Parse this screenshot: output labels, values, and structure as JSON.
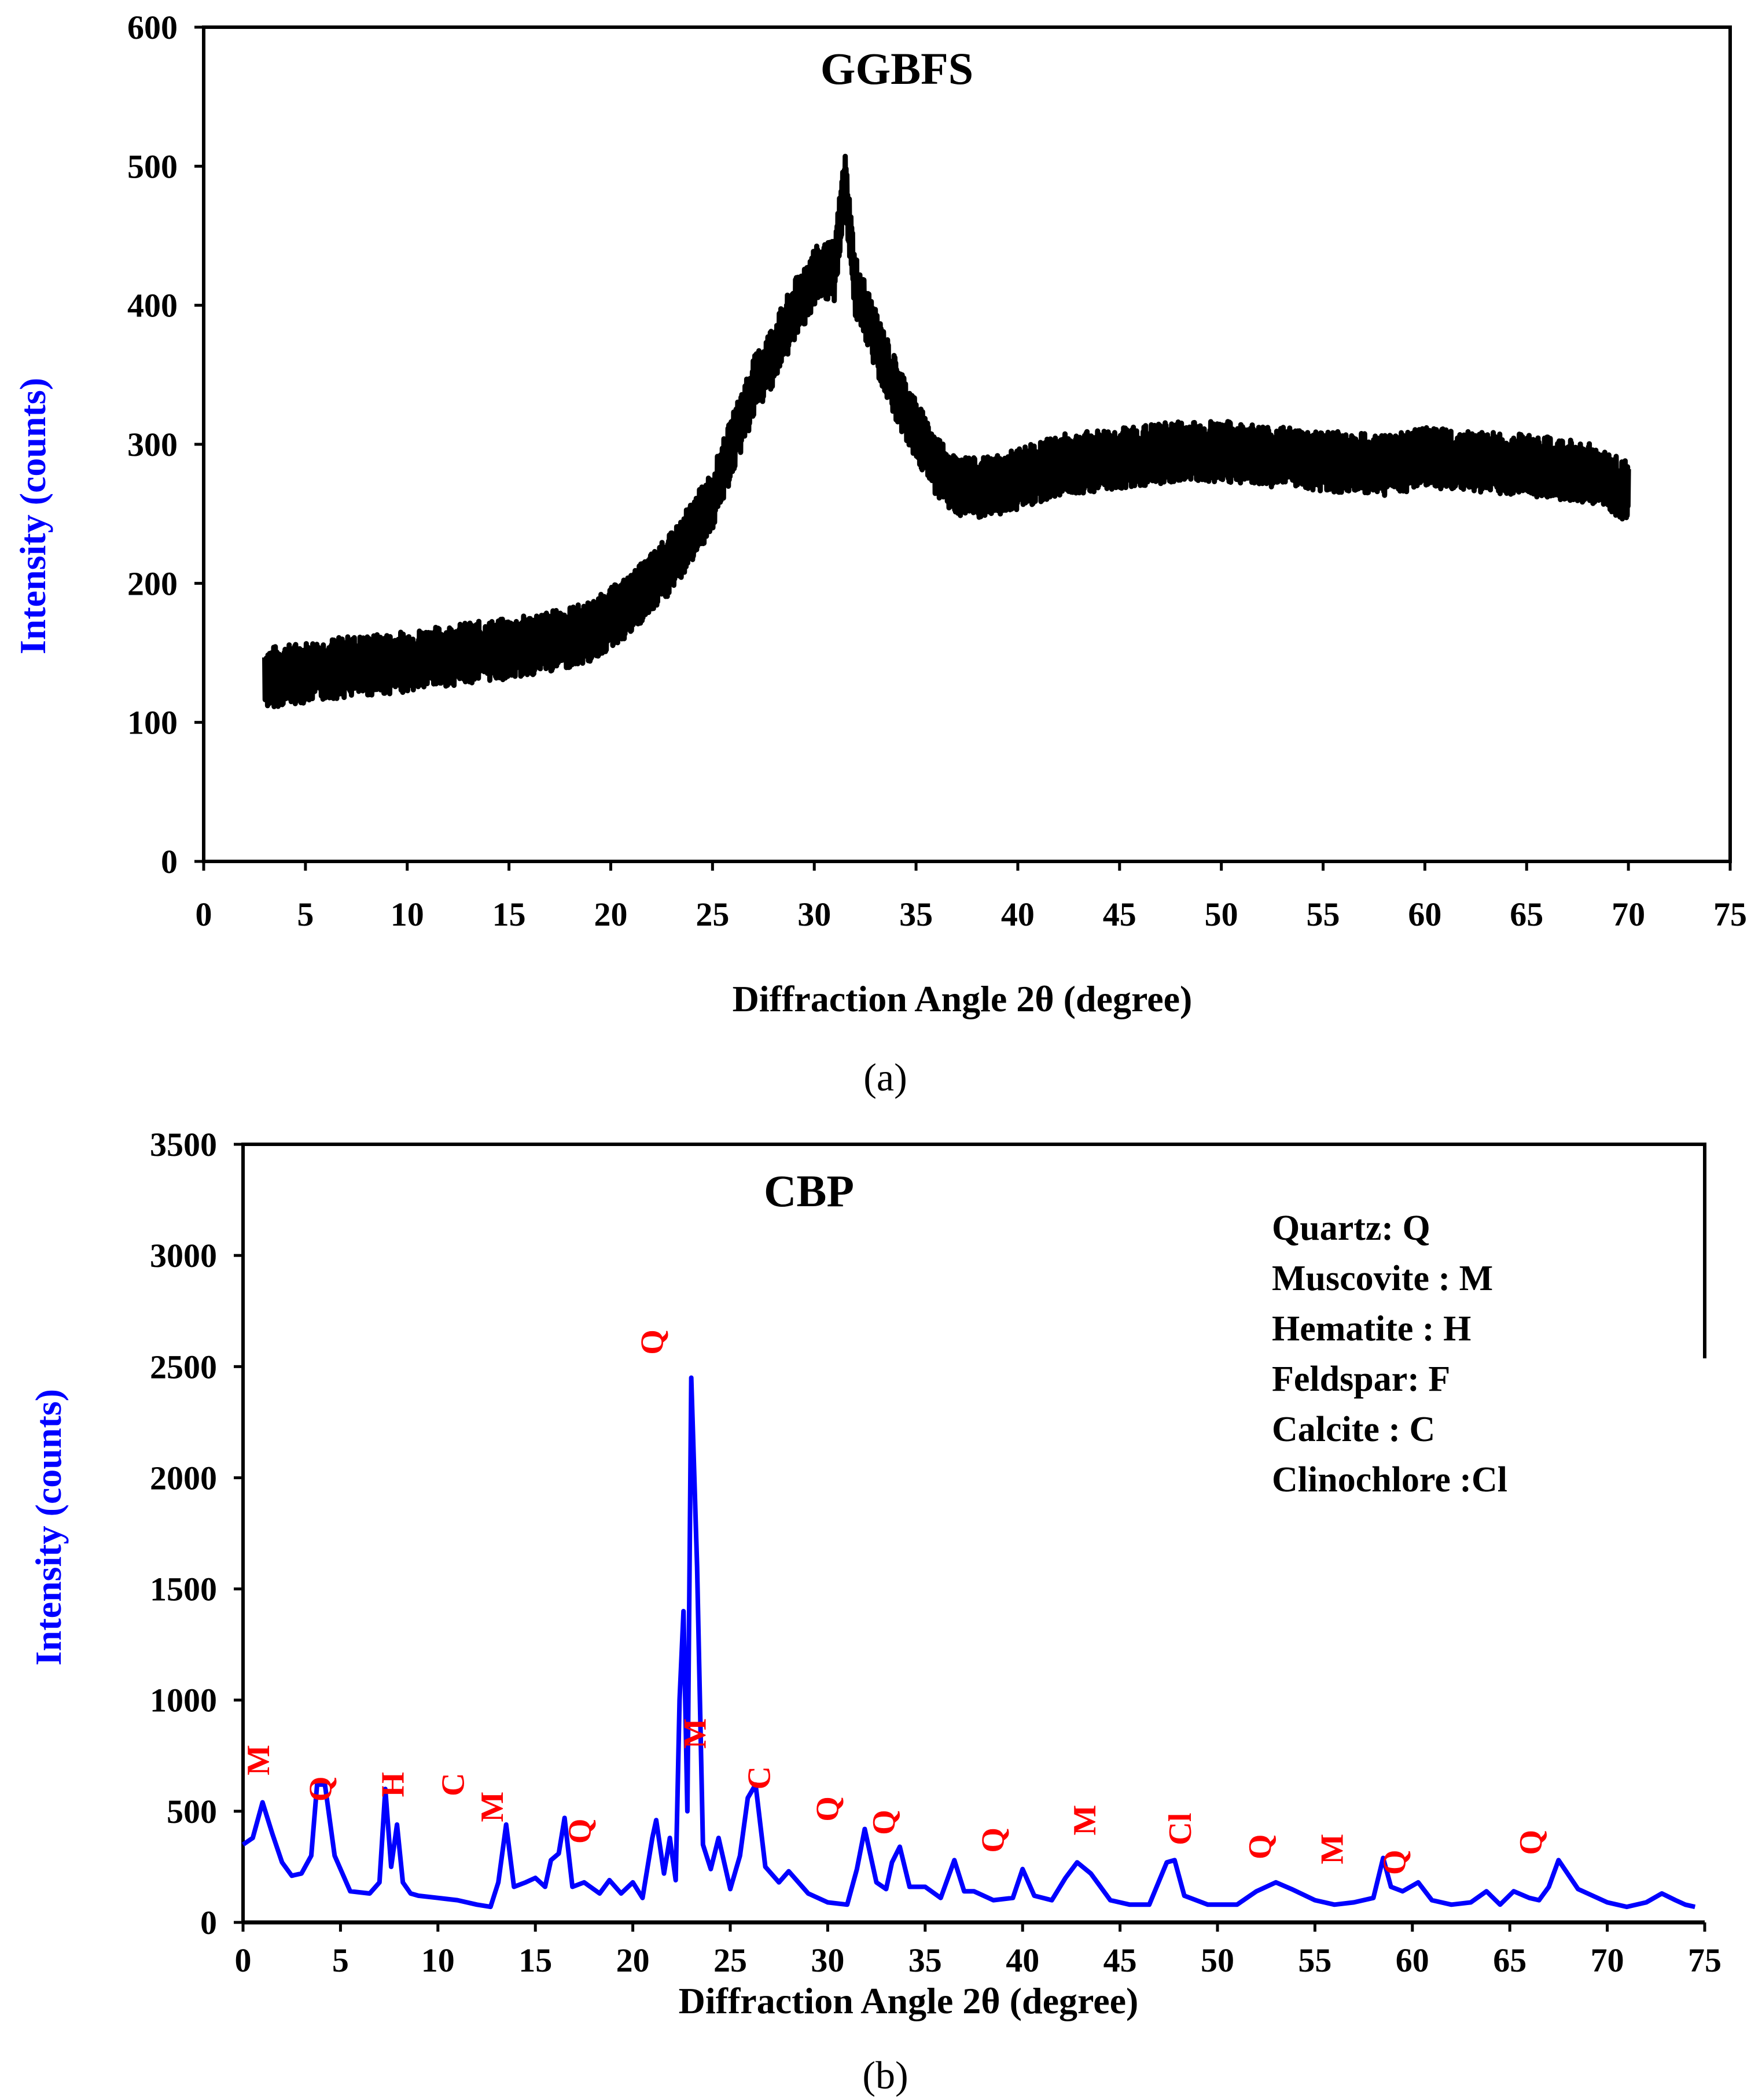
{
  "chart_data": [
    {
      "type": "line",
      "panel_label": "(a)",
      "title": "GGBFS",
      "xlabel": "Diffraction Angle 2θ  (degree)",
      "ylabel": "Intensity (counts)",
      "xlim": [
        0,
        75
      ],
      "ylim": [
        0,
        600
      ],
      "xticks": [
        0,
        5,
        10,
        15,
        20,
        25,
        30,
        35,
        40,
        45,
        50,
        55,
        60,
        65,
        70,
        75
      ],
      "yticks": [
        0,
        100,
        200,
        300,
        400,
        500,
        600
      ],
      "grid": false,
      "series": [
        {
          "name": "GGBFS",
          "color": "#000000",
          "x": [
            3,
            5,
            7,
            9,
            11,
            13,
            15,
            17,
            19,
            21,
            23,
            25,
            26,
            27,
            28,
            29,
            30,
            31,
            31.5,
            32,
            33,
            34,
            35,
            36,
            37,
            38,
            39,
            40,
            42,
            45,
            48,
            50,
            52,
            55,
            58,
            60,
            62,
            65,
            68,
            70
          ],
          "values": [
            132,
            136,
            140,
            142,
            146,
            150,
            153,
            158,
            165,
            185,
            215,
            260,
            300,
            340,
            365,
            395,
            420,
            425,
            490,
            415,
            375,
            340,
            310,
            285,
            270,
            268,
            270,
            275,
            285,
            290,
            295,
            295,
            292,
            288,
            285,
            290,
            288,
            285,
            280,
            265
          ],
          "noise_band": 22
        }
      ]
    },
    {
      "type": "line",
      "panel_label": "(b)",
      "title": "CBP",
      "xlabel": "Diffraction Angle 2θ  (degree)",
      "ylabel": "Intensity (counts)",
      "xlim": [
        0,
        75
      ],
      "ylim": [
        0,
        3500
      ],
      "xticks": [
        0,
        5,
        10,
        15,
        20,
        25,
        30,
        35,
        40,
        45,
        50,
        55,
        60,
        65,
        70,
        75
      ],
      "yticks": [
        0,
        500,
        1000,
        1500,
        2000,
        2500,
        3000,
        3500
      ],
      "grid": false,
      "series": [
        {
          "name": "CBP",
          "color": "#0000ff",
          "x": [
            0,
            0.5,
            1,
            1.5,
            2,
            2.5,
            3,
            3.5,
            3.8,
            4.2,
            4.7,
            5.5,
            6.5,
            7,
            7.3,
            7.6,
            7.9,
            8.2,
            8.6,
            9,
            10,
            11,
            12,
            12.7,
            13.1,
            13.5,
            13.9,
            14.5,
            15,
            15.5,
            15.8,
            16.2,
            16.5,
            16.9,
            17.5,
            18.3,
            18.8,
            19.4,
            20,
            20.5,
            21,
            21.2,
            21.6,
            21.9,
            22.2,
            22.4,
            22.6,
            22.8,
            23.0,
            23.3,
            23.6,
            24.0,
            24.4,
            25,
            25.5,
            25.9,
            26.3,
            26.8,
            27.5,
            28,
            29,
            30,
            31,
            31.5,
            31.9,
            32.5,
            33,
            33.3,
            33.7,
            34.2,
            35,
            35.8,
            36.5,
            37,
            37.5,
            38.5,
            39.5,
            40,
            40.6,
            41.5,
            42.2,
            42.8,
            43.5,
            44.5,
            45.5,
            46.5,
            47.4,
            47.8,
            48.3,
            49.5,
            51,
            52,
            52.5,
            53,
            53.8,
            55,
            56,
            57,
            58,
            58.5,
            58.9,
            59.5,
            60.3,
            61,
            62,
            63,
            63.8,
            64.5,
            65.2,
            66,
            66.5,
            67,
            67.5,
            68.5,
            70,
            71,
            72,
            72.8,
            73.5,
            74,
            74.5
          ],
          "values": [
            350,
            380,
            540,
            400,
            270,
            210,
            220,
            300,
            620,
            620,
            300,
            140,
            130,
            180,
            600,
            250,
            440,
            180,
            130,
            120,
            110,
            100,
            80,
            70,
            180,
            440,
            160,
            180,
            200,
            160,
            280,
            310,
            470,
            160,
            180,
            130,
            190,
            130,
            180,
            110,
            380,
            460,
            220,
            380,
            190,
            1000,
            1400,
            500,
            2450,
            1600,
            350,
            240,
            380,
            150,
            300,
            560,
            620,
            250,
            180,
            230,
            130,
            90,
            80,
            240,
            420,
            180,
            150,
            270,
            340,
            160,
            160,
            110,
            280,
            140,
            140,
            100,
            110,
            240,
            120,
            100,
            200,
            270,
            220,
            100,
            80,
            80,
            270,
            280,
            120,
            80,
            80,
            140,
            160,
            180,
            150,
            100,
            80,
            90,
            110,
            290,
            160,
            140,
            180,
            100,
            80,
            90,
            140,
            80,
            140,
            110,
            100,
            160,
            280,
            150,
            90,
            70,
            90,
            130,
            100,
            80,
            70
          ]
        }
      ],
      "annotations": [
        {
          "x": 0.8,
          "y": 730,
          "label": "M"
        },
        {
          "x": 4.0,
          "y": 600,
          "label": "Q"
        },
        {
          "x": 7.7,
          "y": 620,
          "label": "H"
        },
        {
          "x": 10.8,
          "y": 620,
          "label": "C"
        },
        {
          "x": 12.8,
          "y": 520,
          "label": "M"
        },
        {
          "x": 17.3,
          "y": 410,
          "label": "Q"
        },
        {
          "x": 21.0,
          "y": 2610,
          "label": "Q"
        },
        {
          "x": 23.2,
          "y": 850,
          "label": "M"
        },
        {
          "x": 26.5,
          "y": 650,
          "label": "C"
        },
        {
          "x": 30.0,
          "y": 510,
          "label": "Q"
        },
        {
          "x": 32.9,
          "y": 450,
          "label": "Q"
        },
        {
          "x": 38.5,
          "y": 370,
          "label": "Q"
        },
        {
          "x": 43.2,
          "y": 460,
          "label": "M"
        },
        {
          "x": 48.1,
          "y": 420,
          "label": "Cl"
        },
        {
          "x": 52.2,
          "y": 340,
          "label": "Q"
        },
        {
          "x": 55.9,
          "y": 330,
          "label": "M"
        },
        {
          "x": 59.1,
          "y": 270,
          "label": "Q"
        },
        {
          "x": 66.1,
          "y": 360,
          "label": "Q"
        }
      ],
      "legend": {
        "placement": "top-right",
        "entries": [
          "Quartz: Q",
          "Muscovite : M",
          "Hematite : H",
          "Feldspar: F",
          "Calcite : C",
          "Clinochlore :Cl"
        ]
      }
    }
  ],
  "colors": {
    "axis_title": "#0000ff",
    "annotation": "#ff0000"
  }
}
